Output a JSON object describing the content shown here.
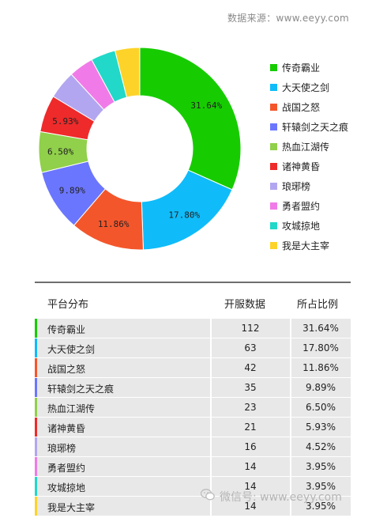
{
  "source": "数据来源：www.eeyy.com",
  "watermark": "微信号: www.eeyy.com",
  "chart_data": {
    "type": "pie",
    "donut": true,
    "legend_position": "right",
    "slices": [
      {
        "label": "传奇霸业",
        "count": 112,
        "percent": 31.64,
        "percent_label": "31.64%",
        "color": "#16cc00"
      },
      {
        "label": "大天使之剑",
        "count": 63,
        "percent": 17.8,
        "percent_label": "17.80%",
        "color": "#0fbcf9"
      },
      {
        "label": "战国之怒",
        "count": 42,
        "percent": 11.86,
        "percent_label": "11.86%",
        "color": "#f4562b"
      },
      {
        "label": "轩辕剑之天之痕",
        "count": 35,
        "percent": 9.89,
        "percent_label": "9.89%",
        "color": "#6b76ff"
      },
      {
        "label": "热血江湖传",
        "count": 23,
        "percent": 6.5,
        "percent_label": "6.50%",
        "color": "#90d04a"
      },
      {
        "label": "诸神黄昏",
        "count": 21,
        "percent": 5.93,
        "percent_label": "5.93%",
        "color": "#ee2a2a"
      },
      {
        "label": "琅琊榜",
        "count": 16,
        "percent": 4.52,
        "percent_label": "4.52%",
        "color": "#b3a6f0"
      },
      {
        "label": "勇者盟约",
        "count": 14,
        "percent": 3.95,
        "percent_label": "3.95%",
        "color": "#f07be8"
      },
      {
        "label": "攻城掠地",
        "count": 14,
        "percent": 3.95,
        "percent_label": "3.95%",
        "color": "#22d8c8"
      },
      {
        "label": "我是大主宰",
        "count": 14,
        "percent": 3.95,
        "percent_label": "3.95%",
        "color": "#fdd32a"
      }
    ]
  },
  "table": {
    "headers": {
      "platform": "平台分布",
      "count": "开服数据",
      "share": "所占比例"
    }
  }
}
